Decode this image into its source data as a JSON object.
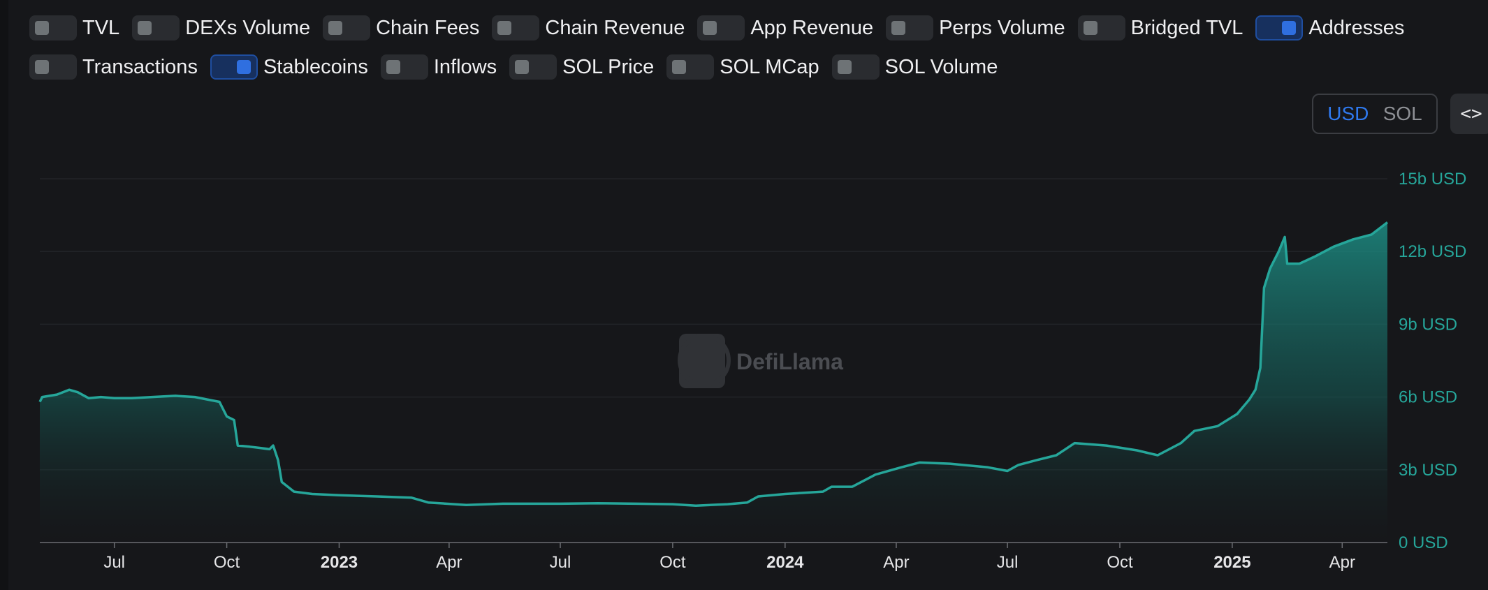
{
  "toggles_row1": [
    {
      "label": "TVL",
      "on": false
    },
    {
      "label": "DEXs Volume",
      "on": false
    },
    {
      "label": "Chain Fees",
      "on": false
    },
    {
      "label": "Chain Revenue",
      "on": false
    },
    {
      "label": "App Revenue",
      "on": false
    },
    {
      "label": "Perps Volume",
      "on": false
    },
    {
      "label": "Bridged TVL",
      "on": false
    },
    {
      "label": "Addresses",
      "on": true
    }
  ],
  "toggles_row2": [
    {
      "label": "Transactions",
      "on": false
    },
    {
      "label": "Stablecoins",
      "on": true
    },
    {
      "label": "Inflows",
      "on": false
    },
    {
      "label": "SOL Price",
      "on": false
    },
    {
      "label": "SOL MCap",
      "on": false
    },
    {
      "label": "SOL Volume",
      "on": false
    }
  ],
  "currency": {
    "usd": "USD",
    "sol": "SOL",
    "active": "USD"
  },
  "embed_label": "<>",
  "watermark": "DefiLlama",
  "colors": {
    "line": "#26a69a",
    "accent": "#2f79ee",
    "toggle_on": "#2f6fe0"
  },
  "chart_data": {
    "type": "area",
    "x_unit": "date",
    "y_unit": "USD (billions)",
    "ylim": [
      0,
      15
    ],
    "yticks": [
      {
        "value": 0,
        "label": "0 USD"
      },
      {
        "value": 3,
        "label": "3b USD"
      },
      {
        "value": 6,
        "label": "6b USD"
      },
      {
        "value": 9,
        "label": "9b USD"
      },
      {
        "value": 12,
        "label": "12b USD"
      },
      {
        "value": 15,
        "label": "15b USD"
      }
    ],
    "xlim": [
      "2022-05-01",
      "2025-05-08"
    ],
    "xticks": [
      {
        "date": "2022-07-01",
        "label": "Jul",
        "bold": false
      },
      {
        "date": "2022-10-01",
        "label": "Oct",
        "bold": false
      },
      {
        "date": "2023-01-01",
        "label": "2023",
        "bold": true
      },
      {
        "date": "2023-04-01",
        "label": "Apr",
        "bold": false
      },
      {
        "date": "2023-07-01",
        "label": "Jul",
        "bold": false
      },
      {
        "date": "2023-10-01",
        "label": "Oct",
        "bold": false
      },
      {
        "date": "2024-01-01",
        "label": "2024",
        "bold": true
      },
      {
        "date": "2024-04-01",
        "label": "Apr",
        "bold": false
      },
      {
        "date": "2024-07-01",
        "label": "Jul",
        "bold": false
      },
      {
        "date": "2024-10-01",
        "label": "Oct",
        "bold": false
      },
      {
        "date": "2025-01-01",
        "label": "2025",
        "bold": true
      },
      {
        "date": "2025-04-01",
        "label": "Apr",
        "bold": false
      }
    ],
    "grid": true,
    "series": [
      {
        "points": [
          [
            "2022-05-01",
            5.8
          ],
          [
            "2022-05-03",
            6.0
          ],
          [
            "2022-05-15",
            6.1
          ],
          [
            "2022-05-25",
            6.3
          ],
          [
            "2022-06-01",
            6.2
          ],
          [
            "2022-06-10",
            5.95
          ],
          [
            "2022-06-20",
            6.0
          ],
          [
            "2022-07-01",
            5.95
          ],
          [
            "2022-07-15",
            5.95
          ],
          [
            "2022-08-01",
            6.0
          ],
          [
            "2022-08-20",
            6.05
          ],
          [
            "2022-09-05",
            6.0
          ],
          [
            "2022-09-15",
            5.9
          ],
          [
            "2022-09-25",
            5.8
          ],
          [
            "2022-10-01",
            5.2
          ],
          [
            "2022-10-07",
            5.05
          ],
          [
            "2022-10-10",
            4.0
          ],
          [
            "2022-10-20",
            3.95
          ],
          [
            "2022-10-28",
            3.9
          ],
          [
            "2022-11-05",
            3.85
          ],
          [
            "2022-11-08",
            4.0
          ],
          [
            "2022-11-12",
            3.4
          ],
          [
            "2022-11-15",
            2.5
          ],
          [
            "2022-11-25",
            2.1
          ],
          [
            "2022-12-10",
            2.0
          ],
          [
            "2023-01-01",
            1.95
          ],
          [
            "2023-02-01",
            1.9
          ],
          [
            "2023-03-01",
            1.85
          ],
          [
            "2023-03-15",
            1.65
          ],
          [
            "2023-04-15",
            1.55
          ],
          [
            "2023-05-15",
            1.6
          ],
          [
            "2023-07-01",
            1.6
          ],
          [
            "2023-08-01",
            1.62
          ],
          [
            "2023-09-01",
            1.6
          ],
          [
            "2023-10-01",
            1.58
          ],
          [
            "2023-10-20",
            1.52
          ],
          [
            "2023-11-15",
            1.58
          ],
          [
            "2023-12-01",
            1.65
          ],
          [
            "2023-12-10",
            1.9
          ],
          [
            "2024-01-01",
            2.0
          ],
          [
            "2024-02-01",
            2.1
          ],
          [
            "2024-02-08",
            2.3
          ],
          [
            "2024-02-25",
            2.3
          ],
          [
            "2024-03-15",
            2.8
          ],
          [
            "2024-04-05",
            3.1
          ],
          [
            "2024-04-20",
            3.3
          ],
          [
            "2024-05-15",
            3.25
          ],
          [
            "2024-06-15",
            3.1
          ],
          [
            "2024-07-01",
            2.95
          ],
          [
            "2024-07-10",
            3.2
          ],
          [
            "2024-07-25",
            3.4
          ],
          [
            "2024-08-10",
            3.6
          ],
          [
            "2024-08-25",
            4.1
          ],
          [
            "2024-09-20",
            4.0
          ],
          [
            "2024-10-15",
            3.8
          ],
          [
            "2024-11-01",
            3.6
          ],
          [
            "2024-11-20",
            4.1
          ],
          [
            "2024-12-01",
            4.6
          ],
          [
            "2024-12-20",
            4.8
          ],
          [
            "2025-01-05",
            5.3
          ],
          [
            "2025-01-15",
            5.9
          ],
          [
            "2025-01-20",
            6.3
          ],
          [
            "2025-01-24",
            7.2
          ],
          [
            "2025-01-27",
            10.5
          ],
          [
            "2025-02-01",
            11.3
          ],
          [
            "2025-02-08",
            12.0
          ],
          [
            "2025-02-13",
            12.6
          ],
          [
            "2025-02-15",
            11.5
          ],
          [
            "2025-02-25",
            11.5
          ],
          [
            "2025-03-10",
            11.8
          ],
          [
            "2025-03-25",
            12.2
          ],
          [
            "2025-04-10",
            12.5
          ],
          [
            "2025-04-25",
            12.7
          ],
          [
            "2025-05-08",
            13.2
          ]
        ]
      }
    ]
  }
}
